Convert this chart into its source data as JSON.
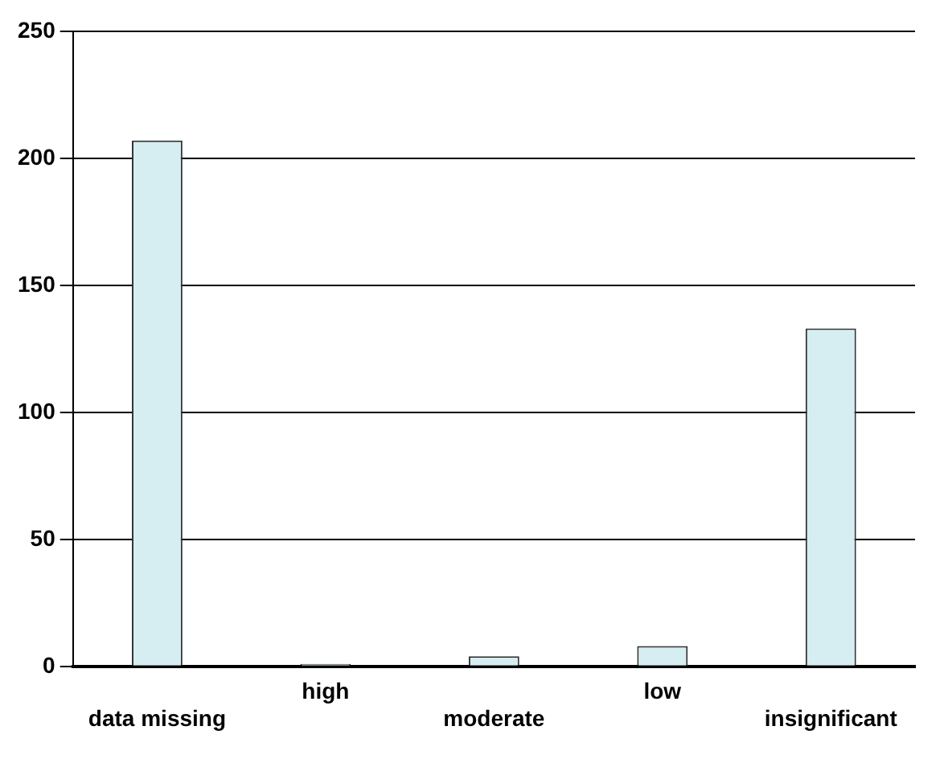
{
  "chart_data": {
    "type": "bar",
    "categories": [
      "data missing",
      "high",
      "moderate",
      "low",
      "insignificant"
    ],
    "values": [
      207,
      1,
      4,
      8,
      133
    ],
    "color": "#d6eef2",
    "ylim": [
      0,
      250
    ],
    "yticks": [
      0,
      50,
      100,
      150,
      200,
      250
    ],
    "grid": "y"
  }
}
